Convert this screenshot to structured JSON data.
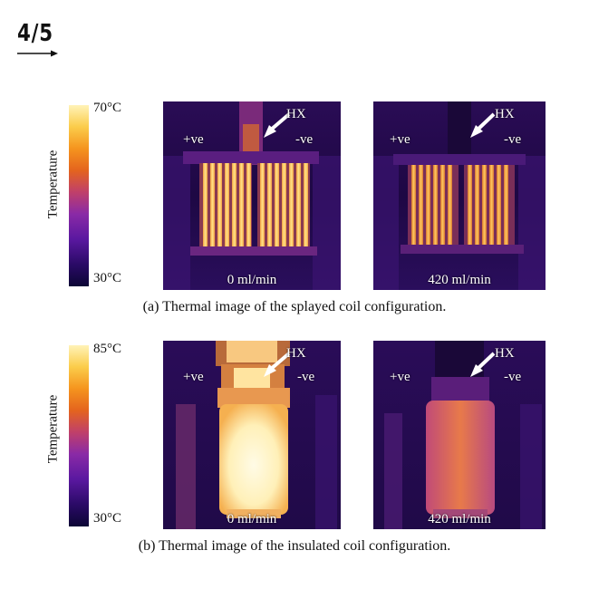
{
  "page": {
    "number": "4/5"
  },
  "figure_a": {
    "scale": {
      "max": "70°C",
      "min": "30°C",
      "axis_label": "Temperature"
    },
    "left_panel": {
      "pos": "+ve",
      "neg": "-ve",
      "hx": "HX",
      "flow": "0 ml/min"
    },
    "right_panel": {
      "pos": "+ve",
      "neg": "-ve",
      "hx": "HX",
      "flow": "420 ml/min"
    },
    "caption": "(a) Thermal image of the splayed coil configuration."
  },
  "figure_b": {
    "scale": {
      "max": "85°C",
      "min": "30°C",
      "axis_label": "Temperature"
    },
    "left_panel": {
      "pos": "+ve",
      "neg": "-ve",
      "hx": "HX",
      "flow": "0 ml/min"
    },
    "right_panel": {
      "pos": "+ve",
      "neg": "-ve",
      "hx": "HX",
      "flow": "420 ml/min"
    },
    "caption": "(b) Thermal image of the insulated coil configuration."
  },
  "colors": {
    "background_dark": "#1a0840",
    "coil_hot": "#ffd060",
    "coil_mid": "#e07a20",
    "insulated_hot": "#fff2c8",
    "insulated_mid": "#e07a3a"
  }
}
